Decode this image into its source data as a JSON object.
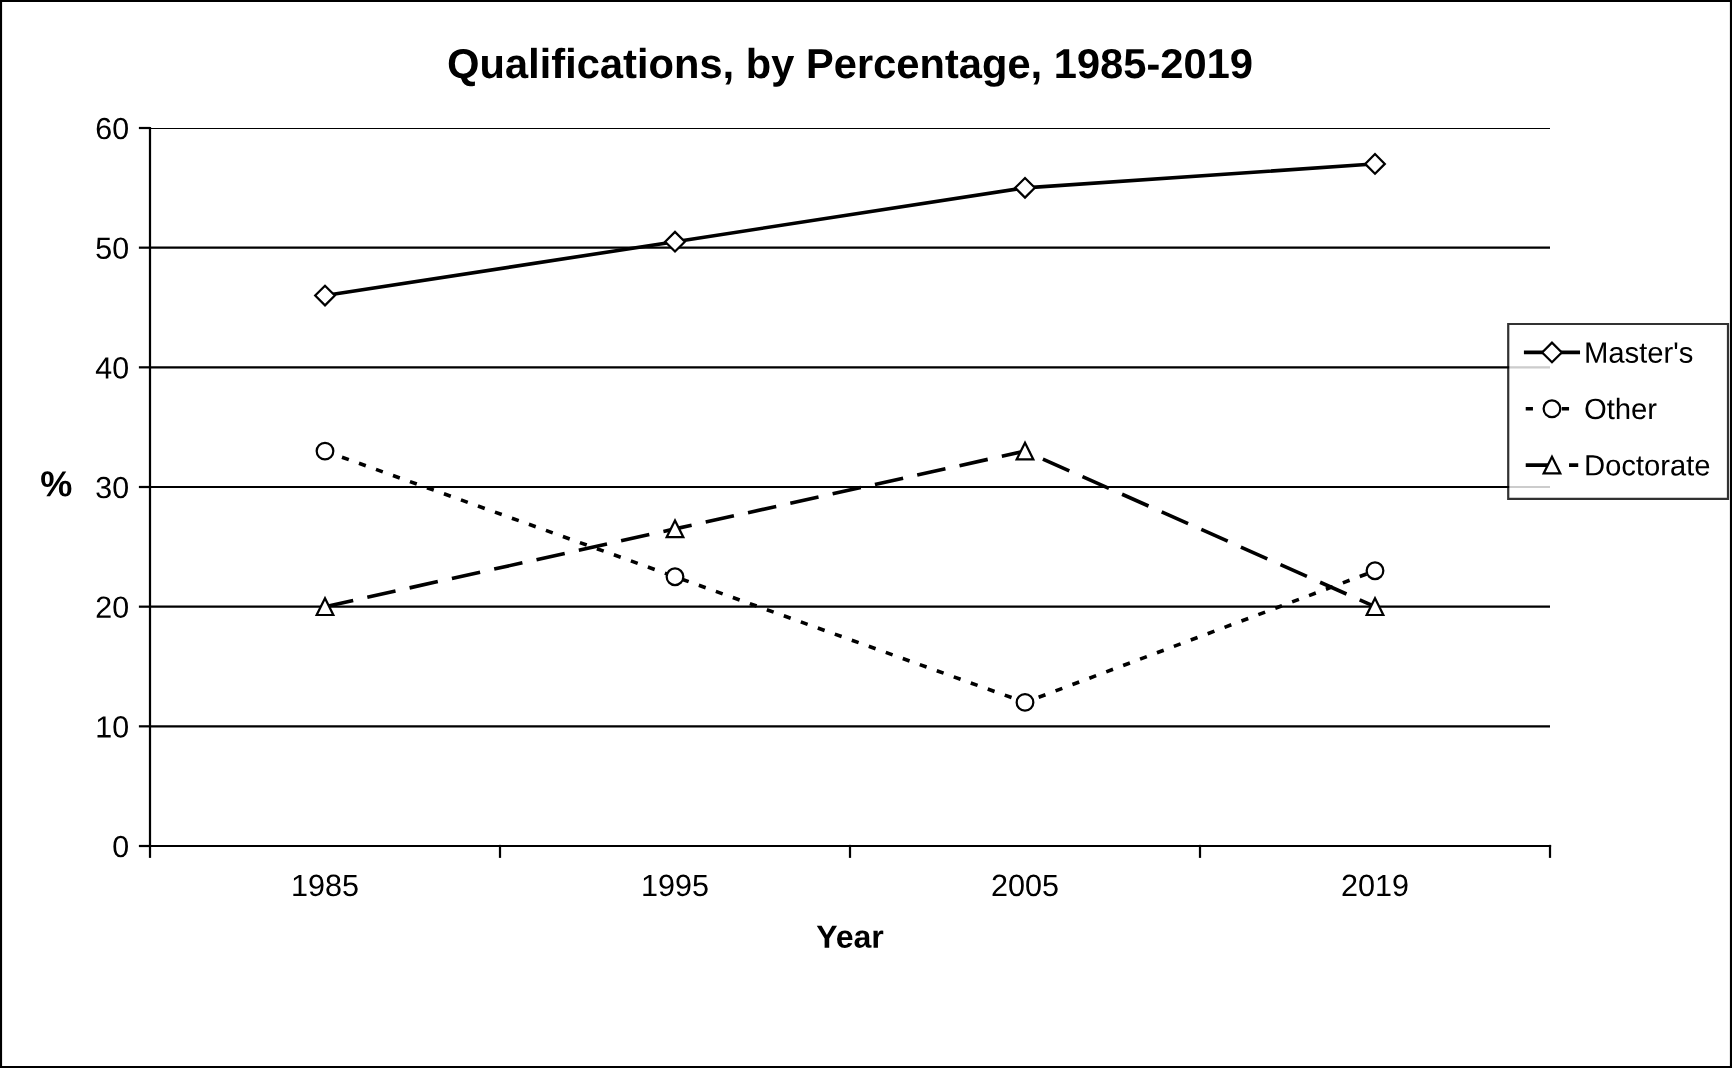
{
  "chart_data": {
    "type": "line",
    "title": "Qualifications, by Percentage, 1985-2019",
    "xlabel": "Year",
    "ylabel": "%",
    "categories": [
      "1985",
      "1995",
      "2005",
      "2019"
    ],
    "series": [
      {
        "name": "Master's",
        "color": "#000000",
        "values": [
          46,
          50.5,
          55,
          57
        ],
        "marker": "diamond",
        "line_style": "solid"
      },
      {
        "name": "Other",
        "color": "#000000",
        "values": [
          33,
          22.5,
          12,
          23
        ],
        "marker": "circle",
        "line_style": "dotted"
      },
      {
        "name": "Doctorate",
        "color": "#000000",
        "values": [
          20,
          26.5,
          33,
          20
        ],
        "marker": "triangle",
        "line_style": "dashed"
      }
    ],
    "ylim": [
      0,
      60
    ],
    "yticks": [
      0,
      10,
      20,
      30,
      40,
      50,
      60
    ],
    "grid": "y",
    "legend": "right"
  }
}
